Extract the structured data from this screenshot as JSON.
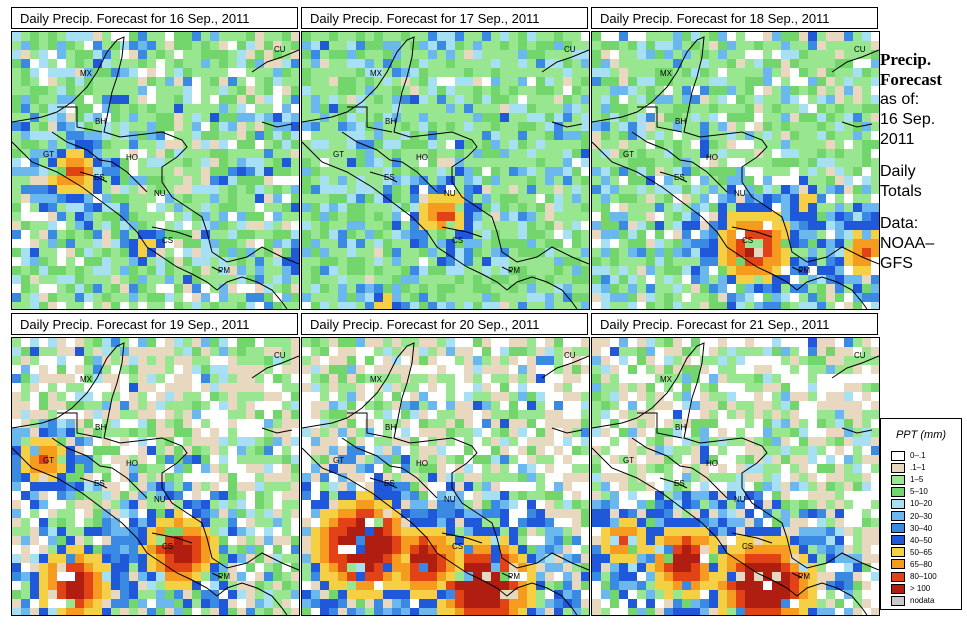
{
  "panels": [
    {
      "title": "Daily Precip. Forecast for  16 Sep., 2011",
      "wet_fraction": 0.8,
      "heavy": [
        [
          70,
          168,
          2
        ],
        [
          140,
          240,
          1
        ],
        [
          300,
          260,
          1
        ]
      ]
    },
    {
      "title": "Daily Precip. Forecast for  17 Sep., 2011",
      "wet_fraction": 0.95,
      "heavy": [
        [
          440,
          210,
          2
        ],
        [
          380,
          300,
          1
        ]
      ]
    },
    {
      "title": "Daily Precip. Forecast for  18 Sep., 2011",
      "wet_fraction": 0.8,
      "heavy": [
        [
          750,
          240,
          3
        ],
        [
          860,
          245,
          2
        ],
        [
          800,
          195,
          1
        ]
      ]
    },
    {
      "title": "Daily Precip. Forecast for  19 Sep., 2011",
      "wet_fraction": 0.55,
      "heavy": [
        [
          70,
          580,
          3
        ],
        [
          175,
          545,
          3
        ],
        [
          40,
          455,
          2
        ]
      ]
    },
    {
      "title": "Daily Precip. Forecast for  20 Sep., 2011",
      "wet_fraction": 0.45,
      "heavy": [
        [
          360,
          540,
          4
        ],
        [
          480,
          580,
          4
        ],
        [
          420,
          555,
          3
        ]
      ]
    },
    {
      "title": "Daily Precip. Forecast for  21 Sep., 2011",
      "wet_fraction": 0.45,
      "heavy": [
        [
          760,
          580,
          4
        ],
        [
          680,
          555,
          3
        ],
        [
          620,
          535,
          2
        ]
      ]
    }
  ],
  "country_labels": [
    "MX",
    "BH",
    "GT",
    "HO",
    "ES",
    "NU",
    "CS",
    "PM",
    "CU"
  ],
  "side": {
    "heading1": "Precip.",
    "heading2": "Forecast",
    "line1": "as of:",
    "line2": "16 Sep.",
    "line3": "2011",
    "line4": "Daily",
    "line5": "Totals",
    "line6": "Data:",
    "line7": "NOAA–",
    "line8": "GFS"
  },
  "legend": {
    "title": "PPT (mm)",
    "items": [
      {
        "label": "0–.1",
        "color": "#ffffff"
      },
      {
        "label": ".1–1",
        "color": "#e8d8bf"
      },
      {
        "label": "1–5",
        "color": "#98e690"
      },
      {
        "label": "5–10",
        "color": "#73d66c"
      },
      {
        "label": "10–20",
        "color": "#a6e0f2"
      },
      {
        "label": "20–30",
        "color": "#6ab8ee"
      },
      {
        "label": "30–40",
        "color": "#3a8ae3"
      },
      {
        "label": "40–50",
        "color": "#1f58d8"
      },
      {
        "label": "50–65",
        "color": "#f6d044"
      },
      {
        "label": "65–80",
        "color": "#f59b1f"
      },
      {
        "label": "80–100",
        "color": "#e24316"
      },
      {
        "label": "> 100",
        "color": "#b01e12"
      },
      {
        "label": "nodata",
        "color": "#c8c8c8"
      }
    ]
  }
}
